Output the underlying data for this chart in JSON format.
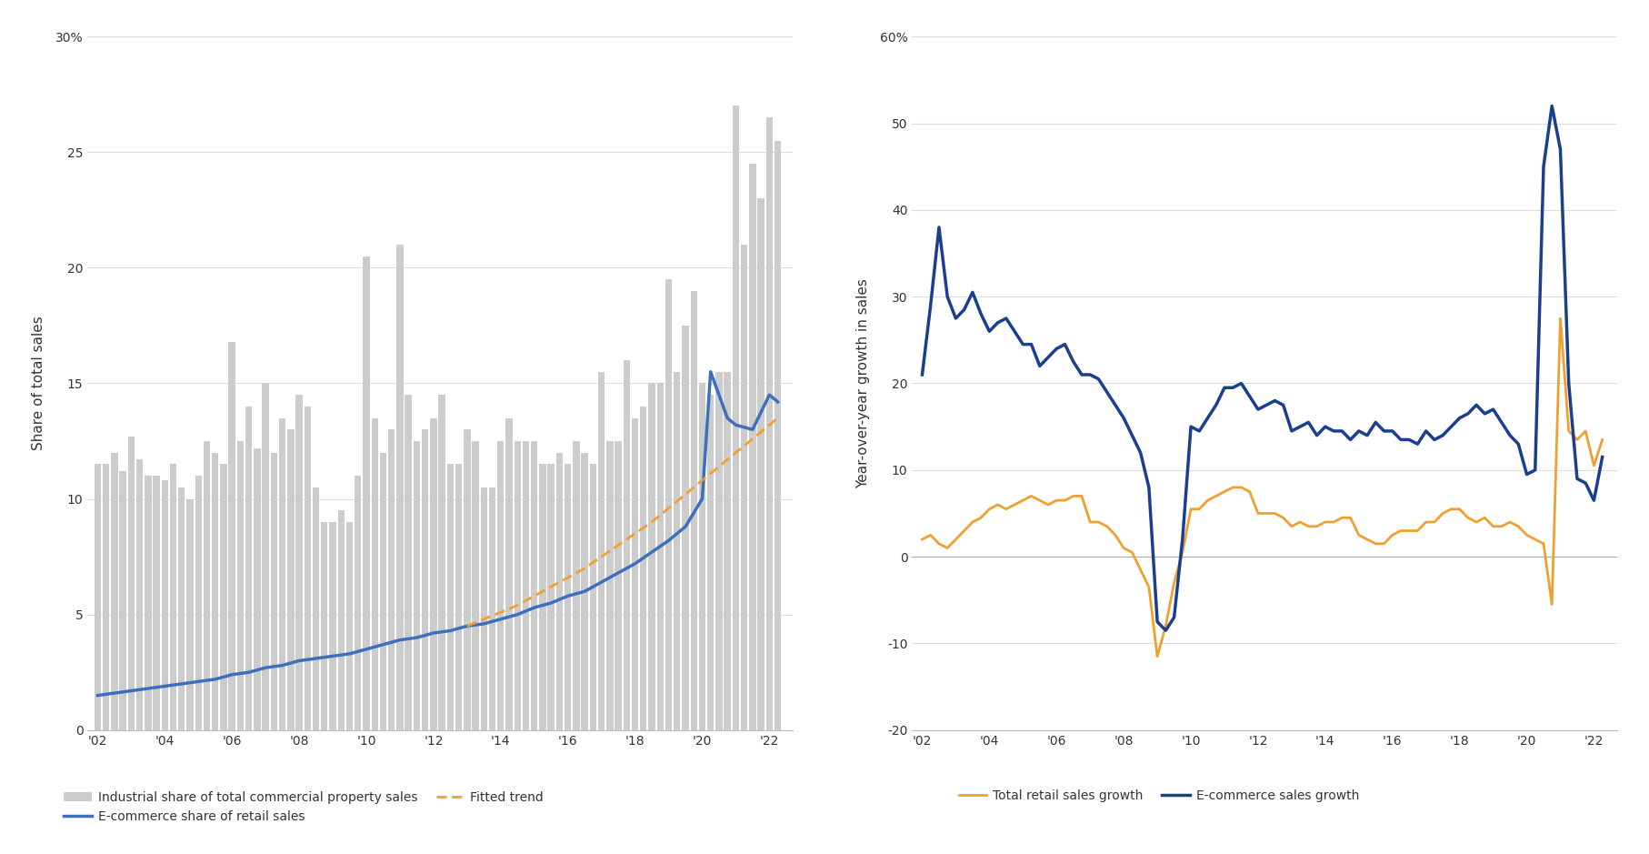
{
  "chart1": {
    "ylabel": "Share of total sales",
    "ylim": [
      0,
      30
    ],
    "yticks": [
      0,
      5,
      10,
      15,
      20,
      25,
      30
    ],
    "xtick_labels": [
      "'02",
      "'04",
      "'06",
      "'08",
      "'10",
      "'12",
      "'14",
      "'16",
      "'18",
      "'20",
      "'22"
    ],
    "bar_color": "#cccccc",
    "ecommerce_color": "#3d6fbe",
    "trend_color": "#f0a030",
    "bar_data_years": [
      2002.0,
      2002.25,
      2002.5,
      2002.75,
      2003.0,
      2003.25,
      2003.5,
      2003.75,
      2004.0,
      2004.25,
      2004.5,
      2004.75,
      2005.0,
      2005.25,
      2005.5,
      2005.75,
      2006.0,
      2006.25,
      2006.5,
      2006.75,
      2007.0,
      2007.25,
      2007.5,
      2007.75,
      2008.0,
      2008.25,
      2008.5,
      2008.75,
      2009.0,
      2009.25,
      2009.5,
      2009.75,
      2010.0,
      2010.25,
      2010.5,
      2010.75,
      2011.0,
      2011.25,
      2011.5,
      2011.75,
      2012.0,
      2012.25,
      2012.5,
      2012.75,
      2013.0,
      2013.25,
      2013.5,
      2013.75,
      2014.0,
      2014.25,
      2014.5,
      2014.75,
      2015.0,
      2015.25,
      2015.5,
      2015.75,
      2016.0,
      2016.25,
      2016.5,
      2016.75,
      2017.0,
      2017.25,
      2017.5,
      2017.75,
      2018.0,
      2018.25,
      2018.5,
      2018.75,
      2019.0,
      2019.25,
      2019.5,
      2019.75,
      2020.0,
      2020.25,
      2020.5,
      2020.75,
      2021.0,
      2021.25,
      2021.5,
      2021.75,
      2022.0,
      2022.25
    ],
    "bar_data_values": [
      11.5,
      11.5,
      12.0,
      11.2,
      12.7,
      11.7,
      11.0,
      11.0,
      10.8,
      11.5,
      10.5,
      10.0,
      11.0,
      12.5,
      12.0,
      11.5,
      16.8,
      12.5,
      14.0,
      12.2,
      15.0,
      12.0,
      13.5,
      13.0,
      14.5,
      14.0,
      10.5,
      9.0,
      9.0,
      9.5,
      9.0,
      11.0,
      20.5,
      13.5,
      12.0,
      13.0,
      21.0,
      14.5,
      12.5,
      13.0,
      13.5,
      14.5,
      11.5,
      11.5,
      13.0,
      12.5,
      10.5,
      10.5,
      12.5,
      13.5,
      12.5,
      12.5,
      12.5,
      11.5,
      11.5,
      12.0,
      11.5,
      12.5,
      12.0,
      11.5,
      15.5,
      12.5,
      12.5,
      16.0,
      13.5,
      14.0,
      15.0,
      15.0,
      19.5,
      15.5,
      17.5,
      19.0,
      15.0,
      14.5,
      15.5,
      15.5,
      27.0,
      21.0,
      24.5,
      23.0,
      26.5,
      25.5
    ],
    "ecommerce_years": [
      2002.0,
      2002.5,
      2003.0,
      2003.5,
      2004.0,
      2004.5,
      2005.0,
      2005.5,
      2006.0,
      2006.5,
      2007.0,
      2007.5,
      2008.0,
      2008.5,
      2009.0,
      2009.5,
      2010.0,
      2010.5,
      2011.0,
      2011.5,
      2012.0,
      2012.5,
      2013.0,
      2013.5,
      2014.0,
      2014.5,
      2015.0,
      2015.5,
      2016.0,
      2016.5,
      2017.0,
      2017.5,
      2018.0,
      2018.5,
      2019.0,
      2019.5,
      2020.0,
      2020.25,
      2020.5,
      2020.75,
      2021.0,
      2021.5,
      2022.0,
      2022.25
    ],
    "ecommerce_values": [
      1.5,
      1.6,
      1.7,
      1.8,
      1.9,
      2.0,
      2.1,
      2.2,
      2.4,
      2.5,
      2.7,
      2.8,
      3.0,
      3.1,
      3.2,
      3.3,
      3.5,
      3.7,
      3.9,
      4.0,
      4.2,
      4.3,
      4.5,
      4.6,
      4.8,
      5.0,
      5.3,
      5.5,
      5.8,
      6.0,
      6.4,
      6.8,
      7.2,
      7.7,
      8.2,
      8.8,
      10.0,
      15.5,
      14.5,
      13.5,
      13.2,
      13.0,
      14.5,
      14.2
    ],
    "trend_years": [
      2013.0,
      2013.5,
      2014.0,
      2014.5,
      2015.0,
      2015.5,
      2016.0,
      2016.5,
      2017.0,
      2017.5,
      2018.0,
      2018.5,
      2019.0,
      2019.5,
      2020.0,
      2020.5,
      2021.0,
      2021.5,
      2022.0,
      2022.25
    ],
    "trend_values": [
      4.5,
      4.8,
      5.1,
      5.4,
      5.8,
      6.2,
      6.6,
      7.0,
      7.5,
      8.0,
      8.5,
      9.0,
      9.6,
      10.2,
      10.8,
      11.4,
      12.0,
      12.6,
      13.2,
      13.5
    ]
  },
  "chart2": {
    "ylabel": "Year-over-year growth in sales",
    "ylim": [
      -20,
      60
    ],
    "yticks": [
      -20,
      -10,
      0,
      10,
      20,
      30,
      40,
      50,
      60
    ],
    "xtick_labels": [
      "'02",
      "'04",
      "'06",
      "'08",
      "'10",
      "'12",
      "'14",
      "'16",
      "'18",
      "'20",
      "'22"
    ],
    "total_color": "#f0a030",
    "ecommerce_color": "#1a3f8f",
    "total_years": [
      2002.0,
      2002.25,
      2002.5,
      2002.75,
      2003.0,
      2003.25,
      2003.5,
      2003.75,
      2004.0,
      2004.25,
      2004.5,
      2004.75,
      2005.0,
      2005.25,
      2005.5,
      2005.75,
      2006.0,
      2006.25,
      2006.5,
      2006.75,
      2007.0,
      2007.25,
      2007.5,
      2007.75,
      2008.0,
      2008.25,
      2008.5,
      2008.75,
      2009.0,
      2009.25,
      2009.5,
      2009.75,
      2010.0,
      2010.25,
      2010.5,
      2010.75,
      2011.0,
      2011.25,
      2011.5,
      2011.75,
      2012.0,
      2012.25,
      2012.5,
      2012.75,
      2013.0,
      2013.25,
      2013.5,
      2013.75,
      2014.0,
      2014.25,
      2014.5,
      2014.75,
      2015.0,
      2015.25,
      2015.5,
      2015.75,
      2016.0,
      2016.25,
      2016.5,
      2016.75,
      2017.0,
      2017.25,
      2017.5,
      2017.75,
      2018.0,
      2018.25,
      2018.5,
      2018.75,
      2019.0,
      2019.25,
      2019.5,
      2019.75,
      2020.0,
      2020.25,
      2020.5,
      2020.75,
      2021.0,
      2021.25,
      2021.5,
      2021.75,
      2022.0,
      2022.25
    ],
    "total_values": [
      2.0,
      2.5,
      1.5,
      1.0,
      2.0,
      3.0,
      4.0,
      4.5,
      5.5,
      6.0,
      5.5,
      6.0,
      6.5,
      7.0,
      6.5,
      6.0,
      6.5,
      6.5,
      7.0,
      7.0,
      4.0,
      4.0,
      3.5,
      2.5,
      1.0,
      0.5,
      -1.5,
      -3.5,
      -11.5,
      -8.0,
      -3.0,
      0.5,
      5.5,
      5.5,
      6.5,
      7.0,
      7.5,
      8.0,
      8.0,
      7.5,
      5.0,
      5.0,
      5.0,
      4.5,
      3.5,
      4.0,
      3.5,
      3.5,
      4.0,
      4.0,
      4.5,
      4.5,
      2.5,
      2.0,
      1.5,
      1.5,
      2.5,
      3.0,
      3.0,
      3.0,
      4.0,
      4.0,
      5.0,
      5.5,
      5.5,
      4.5,
      4.0,
      4.5,
      3.5,
      3.5,
      4.0,
      3.5,
      2.5,
      2.0,
      1.5,
      -5.5,
      27.5,
      14.5,
      13.5,
      14.5,
      10.5,
      13.5
    ],
    "ecommerce_years": [
      2002.0,
      2002.25,
      2002.5,
      2002.75,
      2003.0,
      2003.25,
      2003.5,
      2003.75,
      2004.0,
      2004.25,
      2004.5,
      2004.75,
      2005.0,
      2005.25,
      2005.5,
      2005.75,
      2006.0,
      2006.25,
      2006.5,
      2006.75,
      2007.0,
      2007.25,
      2007.5,
      2007.75,
      2008.0,
      2008.25,
      2008.5,
      2008.75,
      2009.0,
      2009.25,
      2009.5,
      2009.75,
      2010.0,
      2010.25,
      2010.5,
      2010.75,
      2011.0,
      2011.25,
      2011.5,
      2011.75,
      2012.0,
      2012.25,
      2012.5,
      2012.75,
      2013.0,
      2013.25,
      2013.5,
      2013.75,
      2014.0,
      2014.25,
      2014.5,
      2014.75,
      2015.0,
      2015.25,
      2015.5,
      2015.75,
      2016.0,
      2016.25,
      2016.5,
      2016.75,
      2017.0,
      2017.25,
      2017.5,
      2017.75,
      2018.0,
      2018.25,
      2018.5,
      2018.75,
      2019.0,
      2019.25,
      2019.5,
      2019.75,
      2020.0,
      2020.25,
      2020.5,
      2020.75,
      2021.0,
      2021.25,
      2021.5,
      2021.75,
      2022.0,
      2022.25
    ],
    "ecommerce_values": [
      21.0,
      29.0,
      38.0,
      30.0,
      27.5,
      28.5,
      30.5,
      28.0,
      26.0,
      27.0,
      27.5,
      26.0,
      24.5,
      24.5,
      22.0,
      23.0,
      24.0,
      24.5,
      22.5,
      21.0,
      21.0,
      20.5,
      19.0,
      17.5,
      16.0,
      14.0,
      12.0,
      8.0,
      -7.5,
      -8.5,
      -7.0,
      2.0,
      15.0,
      14.5,
      16.0,
      17.5,
      19.5,
      19.5,
      20.0,
      18.5,
      17.0,
      17.5,
      18.0,
      17.5,
      14.5,
      15.0,
      15.5,
      14.0,
      15.0,
      14.5,
      14.5,
      13.5,
      14.5,
      14.0,
      15.5,
      14.5,
      14.5,
      13.5,
      13.5,
      13.0,
      14.5,
      13.5,
      14.0,
      15.0,
      16.0,
      16.5,
      17.5,
      16.5,
      17.0,
      15.5,
      14.0,
      13.0,
      9.5,
      10.0,
      45.0,
      52.0,
      47.0,
      20.0,
      9.0,
      8.5,
      6.5,
      11.5
    ]
  },
  "background_color": "#ffffff",
  "text_color": "#333333",
  "grid_color": "#dddddd",
  "xtick_positions": [
    2002,
    2004,
    2006,
    2008,
    2010,
    2012,
    2014,
    2016,
    2018,
    2020,
    2022
  ]
}
